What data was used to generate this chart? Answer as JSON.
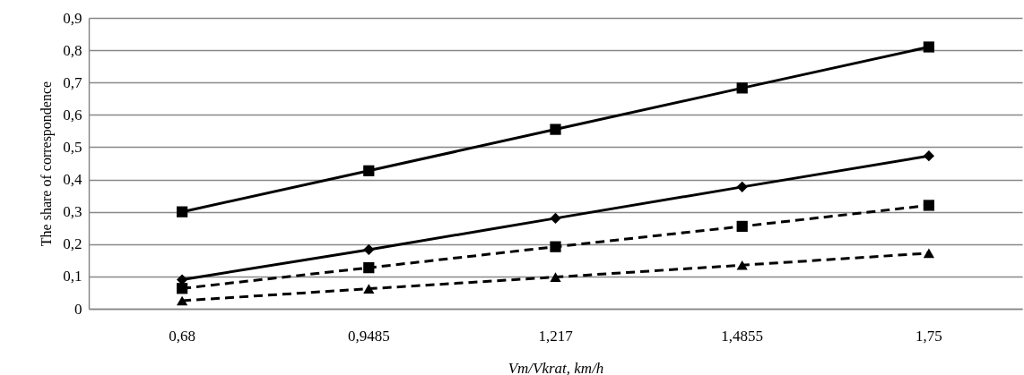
{
  "chart_data": {
    "type": "line",
    "xlabel": "Vm/Vkrat, km/h",
    "ylabel": "The share of correspondence",
    "categories": [
      "0,68",
      "0,9485",
      "1,217",
      "1,4855",
      "1,75"
    ],
    "series": [
      {
        "color": "#000000",
        "marker": "square",
        "line_style": "solid",
        "values": [
          0.3,
          0.427,
          0.555,
          0.683,
          0.81
        ]
      },
      {
        "color": "#000000",
        "marker": "diamond",
        "line_style": "solid",
        "values": [
          0.09,
          0.183,
          0.28,
          0.377,
          0.473
        ]
      },
      {
        "color": "#000000",
        "marker": "square",
        "line_style": "dashed",
        "values": [
          0.063,
          0.127,
          0.192,
          0.255,
          0.32
        ]
      },
      {
        "color": "#000000",
        "marker": "triangle",
        "line_style": "dashed",
        "values": [
          0.025,
          0.062,
          0.098,
          0.135,
          0.172
        ]
      }
    ],
    "ylim": [
      0,
      0.9
    ],
    "yticks": [
      {
        "value": 0,
        "label": "0"
      },
      {
        "value": 0.1,
        "label": "0,1"
      },
      {
        "value": 0.2,
        "label": "0,2"
      },
      {
        "value": 0.3,
        "label": "0,3"
      },
      {
        "value": 0.4,
        "label": "0,4"
      },
      {
        "value": 0.5,
        "label": "0,5"
      },
      {
        "value": 0.6,
        "label": "0,6"
      },
      {
        "value": 0.7,
        "label": "0,7"
      },
      {
        "value": 0.8,
        "label": "0,8"
      },
      {
        "value": 0.9,
        "label": "0,9"
      }
    ],
    "grid": "y"
  }
}
